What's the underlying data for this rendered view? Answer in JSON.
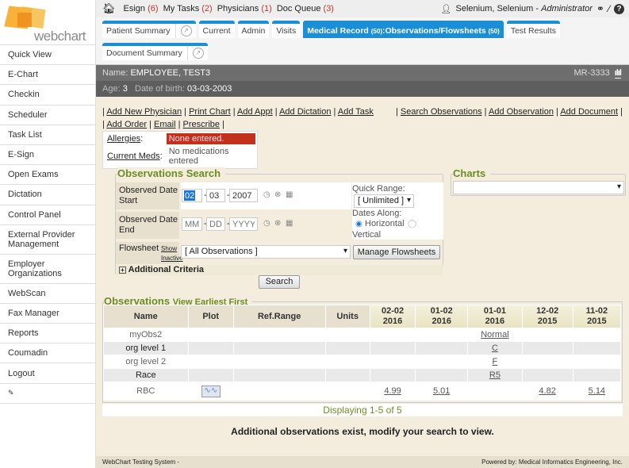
{
  "logo": {
    "text": "webchart"
  },
  "sidebar": {
    "items": [
      "Quick View",
      "E-Chart",
      "Checkin",
      "Scheduler",
      "Task List",
      "E-Sign",
      "Open Exams",
      "Dictation",
      "Control Panel",
      "External Provider Management",
      "Employer Organizations",
      "WebScan",
      "Fax Manager",
      "Reports",
      "Coumadin",
      "Logout"
    ],
    "pin_icon": "pin-icon"
  },
  "topbar": {
    "esign": "Esign",
    "esign_count": "(6)",
    "tasks": "My Tasks",
    "tasks_count": "(2)",
    "physicians": "Physicians",
    "physicians_count": "(1)",
    "docqueue": "Doc Queue",
    "docqueue_count": "(3)",
    "user": "Selenium, Selenium",
    "role": "Administrator"
  },
  "tabs": {
    "patient_summary": "Patient Summary",
    "current": "Current",
    "admin": "Admin",
    "visits": "Visits",
    "medical_record": "Medical Record",
    "mr_count": "(50)",
    "obs": ":Observations/Flowsheets",
    "obs_count": "(50)",
    "test_results": "Test Results",
    "document_summary": "Document Summary"
  },
  "patient": {
    "name_label": "Name:",
    "name": "EMPLOYEE, TEST3",
    "mrn": "MR-3333",
    "age_label": "Age:",
    "age": "3",
    "dob_label": "Date of birth:",
    "dob": "03-03-2003"
  },
  "links_left": [
    "Add New Physician",
    "Print Chart",
    "Add Appt",
    "Add Dictation",
    "Add Task"
  ],
  "links_left2": [
    "Add Order",
    "Email",
    "Prescribe"
  ],
  "links_right": [
    "Search Observations",
    "Add Observation",
    "Add Document"
  ],
  "allergies": {
    "label": "Allergies",
    "value": "None entered.",
    "meds_label": "Current Meds",
    "meds_value": "No medications entered"
  },
  "search": {
    "title": "Observations Search",
    "start_label": "Observed Date Start",
    "start_mm": "02",
    "start_dd": "03",
    "start_yyyy": "2007",
    "end_label": "Observed Date End",
    "ph_mm": "MM",
    "ph_dd": "DD",
    "ph_yyyy": "YYYY",
    "quick_range_label": "Quick Range:",
    "quick_range": "[ Unlimited ]",
    "dates_along": "Dates Along:",
    "horizontal": "Horizontal",
    "vertical": "Vertical",
    "flowsheet_label": "Flowsheet",
    "show_inactive": "Show Inactive",
    "flowsheet_value": "[ All Observations ]",
    "manage": "Manage Flowsheets",
    "additional": "Additional Criteria",
    "search_btn": "Search"
  },
  "charts": {
    "title": "Charts",
    "value": ""
  },
  "observations": {
    "title": "Observations",
    "view_earliest": "View Earliest First",
    "headers": [
      "Name",
      "Plot",
      "Ref.Range",
      "Units"
    ],
    "dates": [
      [
        "02-02",
        "2016"
      ],
      [
        "01-02",
        "2016"
      ],
      [
        "01-01",
        "2016"
      ],
      [
        "12-02",
        "2015"
      ],
      [
        "11-02",
        "2015"
      ]
    ],
    "rows": [
      {
        "name": "myObs2",
        "values": [
          "",
          "",
          "Normal",
          "",
          ""
        ]
      },
      {
        "name": "org level 1",
        "values": [
          "",
          "",
          "C",
          "",
          ""
        ]
      },
      {
        "name": "org level 2",
        "values": [
          "",
          "",
          "F",
          "",
          ""
        ]
      },
      {
        "name": "Race",
        "values": [
          "",
          "",
          "R5",
          "",
          ""
        ]
      },
      {
        "name": "RBC",
        "plot": true,
        "values": [
          "4.99",
          "5.01",
          "",
          "4.82",
          "5.14"
        ]
      }
    ],
    "displaying": "Displaying 1-5 of 5",
    "additional_msg": "Additional observations exist, modify your search to view."
  },
  "footer": {
    "left": "WebChart Testing System -",
    "right": "Powered by: Medical Informatics Engineering, Inc."
  }
}
